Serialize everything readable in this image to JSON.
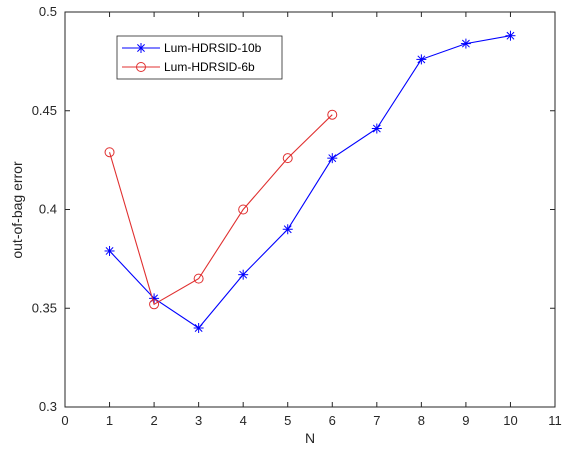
{
  "chart_data": {
    "type": "line",
    "title": "",
    "xlabel": "N",
    "ylabel": "out-of-bag error",
    "xlim": [
      0,
      11
    ],
    "ylim": [
      0.3,
      0.5
    ],
    "xticks": [
      0,
      1,
      2,
      3,
      4,
      5,
      6,
      7,
      8,
      9,
      10,
      11
    ],
    "yticks": [
      0.3,
      0.35,
      0.4,
      0.45,
      0.5
    ],
    "xtick_labels": [
      "0",
      "1",
      "2",
      "3",
      "4",
      "5",
      "6",
      "7",
      "8",
      "9",
      "10",
      "11"
    ],
    "ytick_labels": [
      "0.3",
      "0.35",
      "0.4",
      "0.45",
      "0.5"
    ],
    "grid": false,
    "legend_position": "top-left",
    "series": [
      {
        "name": "Lum-HDRSID-10b",
        "color": "#0000ff",
        "marker": "asterisk",
        "x": [
          1,
          2,
          3,
          4,
          5,
          6,
          7,
          8,
          9,
          10
        ],
        "y": [
          0.379,
          0.355,
          0.34,
          0.367,
          0.39,
          0.426,
          0.441,
          0.476,
          0.484,
          0.488
        ]
      },
      {
        "name": "Lum-HDRSID-6b",
        "color": "#e03030",
        "marker": "circle",
        "x": [
          1,
          2,
          3,
          4,
          5,
          6
        ],
        "y": [
          0.429,
          0.352,
          0.365,
          0.4,
          0.426,
          0.448
        ]
      }
    ]
  }
}
